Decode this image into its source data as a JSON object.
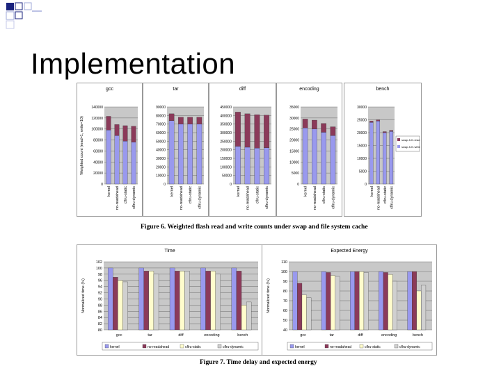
{
  "slide": {
    "title": "Implementation"
  },
  "figure6": {
    "caption": "Figure 6. Weighted flash read and write counts under swap and file system cache",
    "ylabel": "Weighted count (read=1, write=10)",
    "categories": [
      "kernel",
      "no-readahead",
      "cflru-static",
      "cflru-dynamic"
    ],
    "legend": [
      "swap & fs read",
      "swap & fs write"
    ],
    "colors": {
      "read": "#8b3a5a",
      "write": "#9999ee"
    }
  },
  "figure7": {
    "caption": "Figure 7. Time delay and expected energy",
    "ylabel": "Normalized time (%)",
    "categories": [
      "gcc",
      "tar",
      "diff",
      "encoding",
      "bench"
    ],
    "legend": [
      "kernel",
      "no-readahead",
      "cflru-static",
      "cflru-dynamic"
    ],
    "colors": {
      "kernel": "#9999ee",
      "no-readahead": "#8b3a5a",
      "cflru-static": "#fffccc",
      "cflru-dynamic": "#d0d0d0"
    }
  },
  "chart_data": [
    {
      "type": "bar",
      "title": "gcc",
      "stacked": true,
      "ylim": [
        0,
        140000
      ],
      "yticks": [
        "0",
        "20000",
        "40000",
        "60000",
        "80000",
        "100000",
        "120000",
        "140000"
      ],
      "categories": [
        "kernel",
        "no-readahead",
        "cflru-static",
        "cflru-dynamic"
      ],
      "series": [
        {
          "name": "swap & fs write",
          "values": [
            98000,
            88000,
            78000,
            76000
          ]
        },
        {
          "name": "swap & fs read",
          "values": [
            25000,
            20000,
            28000,
            29000
          ]
        }
      ]
    },
    {
      "type": "bar",
      "title": "tar",
      "stacked": true,
      "ylim": [
        0,
        90000
      ],
      "yticks": [
        "0",
        "10000",
        "20000",
        "30000",
        "40000",
        "50000",
        "60000",
        "70000",
        "80000",
        "90000"
      ],
      "categories": [
        "kernel",
        "no-readahead",
        "cflru-static",
        "cflru-dynamic"
      ],
      "series": [
        {
          "name": "swap & fs write",
          "values": [
            74000,
            70000,
            70000,
            70000
          ]
        },
        {
          "name": "swap & fs read",
          "values": [
            8000,
            8000,
            8000,
            8000
          ]
        }
      ]
    },
    {
      "type": "bar",
      "title": "diff",
      "stacked": true,
      "ylim": [
        0,
        450000
      ],
      "yticks": [
        "0",
        "50000",
        "100000",
        "150000",
        "200000",
        "250000",
        "300000",
        "350000",
        "400000",
        "450000"
      ],
      "categories": [
        "kernel",
        "no-readahead",
        "cflru-static",
        "cflru-dynamic"
      ],
      "series": [
        {
          "name": "swap & fs write",
          "values": [
            220000,
            215000,
            210000,
            212000
          ]
        },
        {
          "name": "swap & fs read",
          "values": [
            200000,
            195000,
            195000,
            190000
          ]
        }
      ]
    },
    {
      "type": "bar",
      "title": "encoding",
      "stacked": true,
      "ylim": [
        0,
        35000
      ],
      "yticks": [
        "0",
        "5000",
        "10000",
        "15000",
        "20000",
        "25000",
        "30000",
        "35000"
      ],
      "categories": [
        "kernel",
        "no-readahead",
        "cflru-static",
        "cflru-dynamic"
      ],
      "series": [
        {
          "name": "swap & fs write",
          "values": [
            25500,
            25000,
            23500,
            22000
          ]
        },
        {
          "name": "swap & fs read",
          "values": [
            4000,
            4000,
            4000,
            4000
          ]
        }
      ]
    },
    {
      "type": "bar",
      "title": "bench",
      "stacked": true,
      "ylim": [
        0,
        30000
      ],
      "yticks": [
        "0",
        "5000",
        "10000",
        "15000",
        "20000",
        "25000",
        "30000"
      ],
      "categories": [
        "kernel",
        "no-readahead",
        "cflru-static",
        "cflru-dynamic"
      ],
      "series": [
        {
          "name": "swap & fs write",
          "values": [
            24000,
            24500,
            20000,
            20500
          ]
        },
        {
          "name": "swap & fs read",
          "values": [
            500,
            500,
            400,
            400
          ]
        }
      ]
    },
    {
      "type": "bar",
      "title": "Time",
      "ylim": [
        80,
        102
      ],
      "yticks": [
        "80",
        "82",
        "84",
        "86",
        "88",
        "90",
        "92",
        "94",
        "96",
        "98",
        "100",
        "102"
      ],
      "categories": [
        "gcc",
        "tar",
        "diff",
        "encoding",
        "bench"
      ],
      "series": [
        {
          "name": "kernel",
          "values": [
            100,
            100,
            100,
            100,
            100
          ]
        },
        {
          "name": "no-readahead",
          "values": [
            97,
            99,
            99,
            99,
            99
          ]
        },
        {
          "name": "cflru-static",
          "values": [
            96,
            99,
            99,
            99,
            88
          ]
        },
        {
          "name": "cflru-dynamic",
          "values": [
            95.5,
            98,
            99,
            98,
            89
          ]
        }
      ]
    },
    {
      "type": "bar",
      "title": "Expected Energy",
      "ylim": [
        40,
        110
      ],
      "yticks": [
        "40",
        "50",
        "60",
        "70",
        "80",
        "90",
        "100",
        "110"
      ],
      "categories": [
        "gcc",
        "tar",
        "diff",
        "encoding",
        "bench"
      ],
      "series": [
        {
          "name": "kernel",
          "values": [
            100,
            100,
            100,
            100,
            100
          ]
        },
        {
          "name": "no-readahead",
          "values": [
            88,
            99,
            100,
            99,
            100
          ]
        },
        {
          "name": "cflru-static",
          "values": [
            76,
            96,
            100,
            97,
            80
          ]
        },
        {
          "name": "cflru-dynamic",
          "values": [
            73,
            95,
            99,
            90,
            86
          ]
        }
      ]
    }
  ]
}
